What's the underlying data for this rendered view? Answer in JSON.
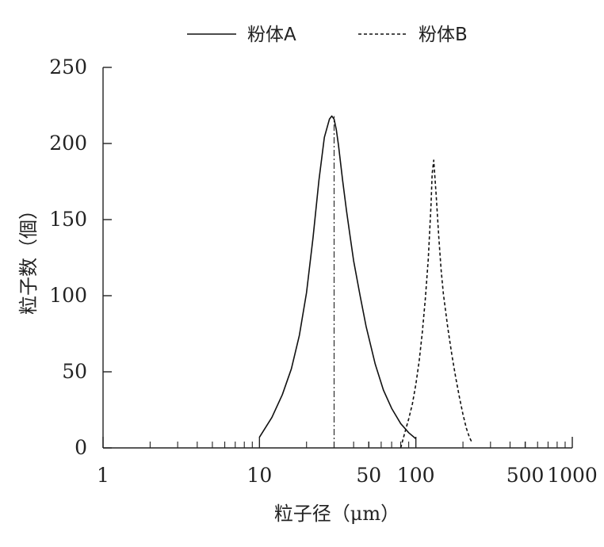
{
  "chart_data": {
    "type": "line",
    "title": "",
    "xlabel": "粒子径（μm）",
    "ylabel": "粒子数（個）",
    "xscale": "log",
    "xlim": [
      1,
      1000
    ],
    "ylim": [
      0,
      250
    ],
    "x_ticks": [
      {
        "value": 1,
        "label": "1"
      },
      {
        "value": 10,
        "label": "10"
      },
      {
        "value": 50,
        "label": "50"
      },
      {
        "value": 100,
        "label": "100"
      },
      {
        "value": 500,
        "label": "500"
      },
      {
        "value": 1000,
        "label": "1000"
      }
    ],
    "y_ticks": [
      {
        "value": 0,
        "label": "0"
      },
      {
        "value": 50,
        "label": "50"
      },
      {
        "value": 100,
        "label": "100"
      },
      {
        "value": 150,
        "label": "150"
      },
      {
        "value": 200,
        "label": "200"
      },
      {
        "value": 250,
        "label": "250"
      }
    ],
    "legend_position": "top",
    "series": [
      {
        "name": "粉体A",
        "style": "solid",
        "x": [
          10,
          12,
          14,
          16,
          18,
          20,
          22,
          24,
          26,
          28,
          29,
          30,
          31,
          32,
          34,
          36,
          38,
          40,
          44,
          48,
          55,
          62,
          70,
          80,
          90,
          100
        ],
        "values": [
          7,
          20,
          35,
          52,
          74,
          102,
          138,
          176,
          204,
          216,
          218,
          216,
          209,
          199,
          176,
          156,
          139,
          123,
          100,
          80,
          55,
          38,
          26,
          16,
          10,
          6
        ]
      },
      {
        "name": "粉体B",
        "style": "dashed",
        "x": [
          80,
          85,
          90,
          95,
          100,
          105,
          110,
          115,
          120,
          125,
          127,
          130,
          135,
          140,
          145,
          150,
          160,
          170,
          180,
          190,
          200,
          210,
          220,
          230
        ],
        "values": [
          0,
          10,
          19,
          29,
          42,
          57,
          76,
          98,
          124,
          160,
          180,
          189,
          165,
          139,
          117,
          101,
          79,
          61,
          46,
          33,
          22,
          13,
          7,
          3
        ]
      }
    ],
    "annotations": [
      {
        "type": "vertical-dash-dot",
        "x": 30,
        "y_top": 218
      }
    ]
  }
}
